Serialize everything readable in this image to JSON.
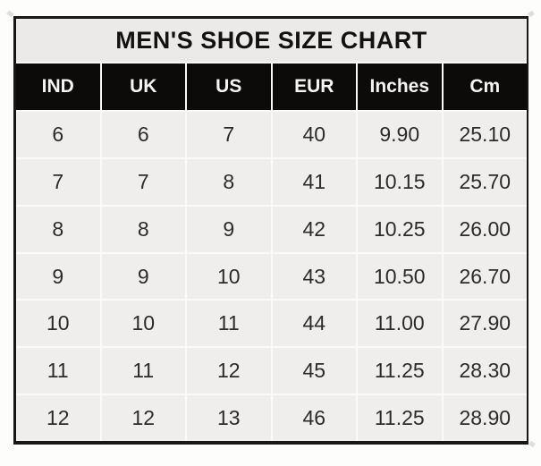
{
  "chart_data": {
    "type": "table",
    "title": "MEN'S SHOE SIZE CHART",
    "columns": [
      "IND",
      "UK",
      "US",
      "EUR",
      "Inches",
      "Cm"
    ],
    "rows": [
      [
        "6",
        "6",
        "7",
        "40",
        "9.90",
        "25.10"
      ],
      [
        "7",
        "7",
        "8",
        "41",
        "10.15",
        "25.70"
      ],
      [
        "8",
        "8",
        "9",
        "42",
        "10.25",
        "26.00"
      ],
      [
        "9",
        "9",
        "10",
        "43",
        "10.50",
        "26.70"
      ],
      [
        "10",
        "10",
        "11",
        "44",
        "11.00",
        "27.90"
      ],
      [
        "11",
        "11",
        "12",
        "45",
        "11.25",
        "28.30"
      ],
      [
        "12",
        "12",
        "13",
        "46",
        "11.25",
        "28.90"
      ]
    ],
    "layout": {
      "legend": "none",
      "grid": "white gaps between cells",
      "header_style": "black background, white bold text",
      "title_style": "light gray band, black bold centered text"
    }
  },
  "colors": {
    "border": "#1a1613",
    "gap": "#fbfaf8",
    "title_bg": "#eceae8",
    "header_bg": "#0d0b0a",
    "header_text": "#f6f4f3",
    "row_bg": "#f0eeed",
    "cell_text": "#2d2b2a"
  }
}
